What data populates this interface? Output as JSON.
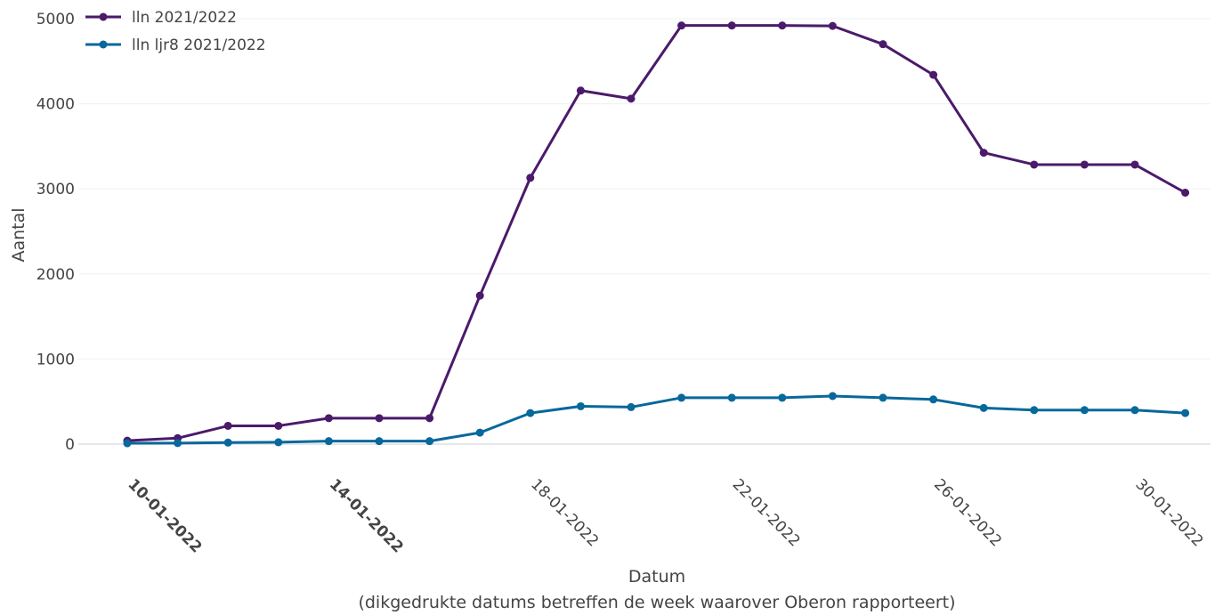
{
  "chart_data": {
    "type": "line",
    "x": [
      "10-01-2022",
      "11-01-2022",
      "12-01-2022",
      "13-01-2022",
      "14-01-2022",
      "15-01-2022",
      "16-01-2022",
      "17-01-2022",
      "18-01-2022",
      "19-01-2022",
      "20-01-2022",
      "21-01-2022",
      "22-01-2022",
      "23-01-2022",
      "24-01-2022",
      "25-01-2022",
      "26-01-2022",
      "27-01-2022",
      "28-01-2022",
      "29-01-2022",
      "30-01-2022",
      "31-01-2022"
    ],
    "series": [
      {
        "name": "lln 2021/2022",
        "color": "#4b1a6b",
        "values": [
          40,
          70,
          215,
          215,
          305,
          305,
          305,
          1745,
          3130,
          4155,
          4060,
          4920,
          4920,
          4920,
          4915,
          4700,
          4340,
          3425,
          3285,
          3285,
          3285,
          2955
        ]
      },
      {
        "name": "lln ljr8 2021/2022",
        "color": "#07689b",
        "values": [
          10,
          12,
          18,
          22,
          35,
          35,
          35,
          135,
          365,
          445,
          435,
          545,
          545,
          545,
          565,
          545,
          525,
          425,
          400,
          400,
          400,
          365
        ]
      }
    ],
    "ylim": [
      0,
      5000
    ],
    "yticks": [
      0,
      1000,
      2000,
      3000,
      4000,
      5000
    ],
    "xticks": [
      {
        "label": "10-01-2022",
        "bold": true
      },
      {
        "label": "14-01-2022",
        "bold": true
      },
      {
        "label": "18-01-2022",
        "bold": false
      },
      {
        "label": "22-01-2022",
        "bold": false
      },
      {
        "label": "26-01-2022",
        "bold": false
      },
      {
        "label": "30-01-2022",
        "bold": false
      }
    ],
    "xlabel": "Datum",
    "xlabel_sub": "(dikgedrukte datums betreffen de week waarover Oberon rapporteert)",
    "ylabel": "Aantal",
    "legend_position": "top-left",
    "grid": true
  }
}
